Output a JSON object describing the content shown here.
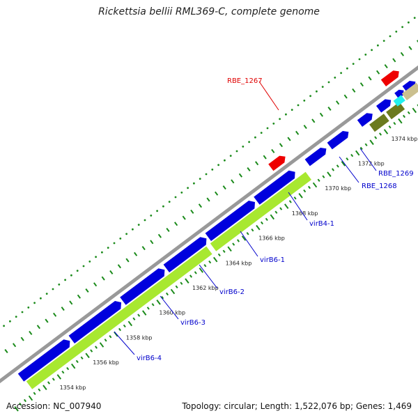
{
  "title": "Rickettsia bellii RML369-C, complete genome",
  "accession": "Accession: NC_007940",
  "summary": "Topology: circular; Length: 1,522,076 bp; Genes: 1,469",
  "kbp_labels": [
    "1354 kbp",
    "1356 kbp",
    "1358 kbp",
    "1360 kbp",
    "1362 kbp",
    "1364 kbp",
    "1366 kbp",
    "1368 kbp",
    "1370 kbp",
    "1372 kbp",
    "1374 kbp"
  ],
  "gene_labels": [
    {
      "text": "RBE_1267",
      "color": "#e00000"
    },
    {
      "text": "RBE_1269",
      "color": "#0000cc"
    },
    {
      "text": "RBE_1268",
      "color": "#0000cc"
    },
    {
      "text": "virB4-1",
      "color": "#0000cc"
    },
    {
      "text": "virB6-1",
      "color": "#0000cc"
    },
    {
      "text": "virB6-2",
      "color": "#0000cc"
    },
    {
      "text": "virB6-3",
      "color": "#0000cc"
    },
    {
      "text": "virB6-4",
      "color": "#0000cc"
    }
  ],
  "colors": {
    "gene_forward": "#0000dd",
    "gene_red": "#ee0000",
    "cds_green": "#a8e830",
    "olive": "#6b7a1e",
    "tan": "#cbc08f",
    "cyan": "#22f0f0",
    "backbone": "#999999",
    "ticks": "#1a8a1a"
  }
}
